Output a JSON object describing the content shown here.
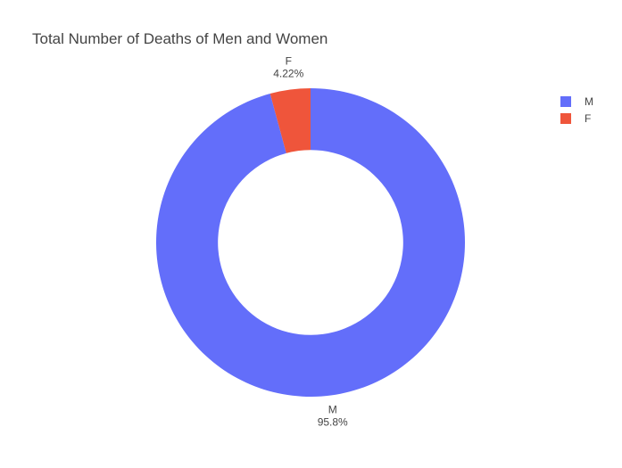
{
  "chart_data": {
    "type": "pie",
    "hole": 0.6,
    "title": "Total Number of Deaths of Men and Women",
    "labels": [
      "M",
      "F"
    ],
    "values": [
      95.78,
      4.22
    ],
    "value_labels": [
      "95.8%",
      "4.22%"
    ],
    "colors": [
      "#636efa",
      "#ef553b"
    ],
    "legend_position": "top-right"
  }
}
